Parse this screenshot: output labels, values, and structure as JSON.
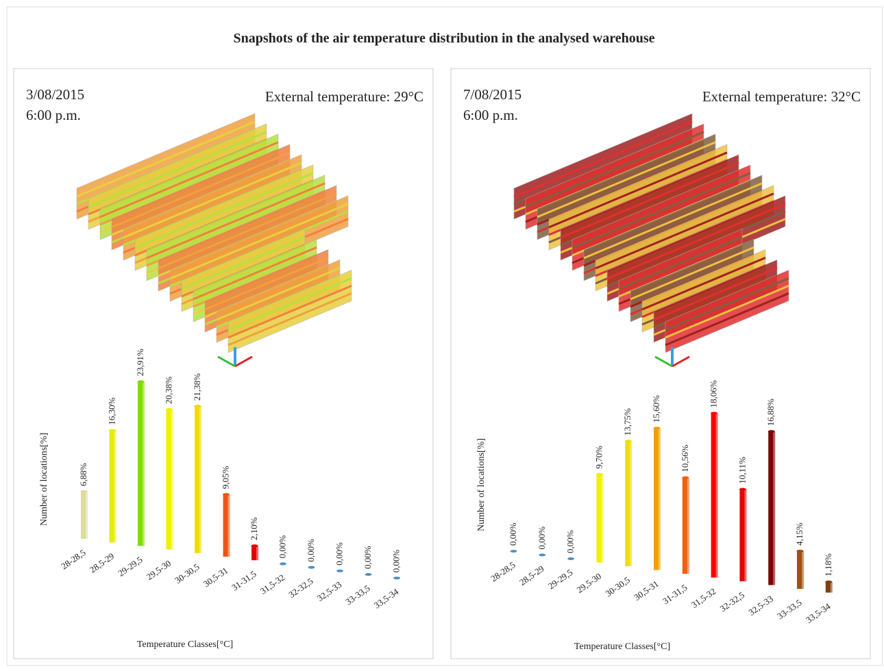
{
  "title": "Snapshots of the air temperature distribution in the analysed warehouse",
  "chart_data": [
    {
      "type": "bar",
      "date": "3/08/2015",
      "time": "6:00 p.m.",
      "annotation": "External temperature: 29°C",
      "xlabel": "Temperature Classes[°C]",
      "ylabel": "Number of locations[%]",
      "categories": [
        "28-28,5",
        "28,5-29",
        "29-29,5",
        "29,5-30",
        "30-30,5",
        "30,5-31",
        "31-31,5",
        "31,5-32",
        "32-32,5",
        "32,5-33",
        "33-33,5",
        "33,5-34"
      ],
      "values": [
        6.88,
        16.3,
        23.91,
        20.38,
        21.38,
        9.05,
        2.1,
        0,
        0,
        0,
        0,
        0
      ],
      "value_labels": [
        "6,88%",
        "16,30%",
        "23,91%",
        "20,38%",
        "21,38%",
        "9,05%",
        "2,10%",
        "0,00%",
        "0,00%",
        "0,00%",
        "0,00%",
        "0,00%"
      ],
      "colors": [
        "#dcdc9c",
        "#e4ee00",
        "#7edc00",
        "#f0f000",
        "#f0dc00",
        "#f05414",
        "#e00000",
        "#4a90c8",
        "#4a90c8",
        "#4a90c8",
        "#4a90c8",
        "#4a90c8"
      ]
    },
    {
      "type": "bar",
      "date": "7/08/2015",
      "time": "6:00 p.m.",
      "annotation": "External temperature: 32°C",
      "xlabel": "Temperature Classes[°C]",
      "ylabel": "Number of locations[%]",
      "categories": [
        "28-28,5",
        "28,5-29",
        "29-29,5",
        "29,5-30",
        "30-30,5",
        "30,5-31",
        "31-31,5",
        "31,5-32",
        "32-32,5",
        "32,5-33",
        "33-33,5",
        "33,5-34"
      ],
      "values": [
        0,
        0,
        0,
        9.7,
        13.75,
        15.6,
        10.56,
        18.06,
        10.11,
        16.88,
        4.15,
        1.18
      ],
      "value_labels": [
        "0,00%",
        "0,00%",
        "0,00%",
        "9,70%",
        "13,75%",
        "15,60%",
        "10,56%",
        "18,06%",
        "10,11%",
        "16,88%",
        "4,15%",
        "1,18%"
      ],
      "colors": [
        "#4a90c8",
        "#4a90c8",
        "#4a90c8",
        "#f0f000",
        "#f0e000",
        "#f0a000",
        "#f06010",
        "#ff0000",
        "#e80000",
        "#800000",
        "#a05010",
        "#804010"
      ]
    }
  ]
}
